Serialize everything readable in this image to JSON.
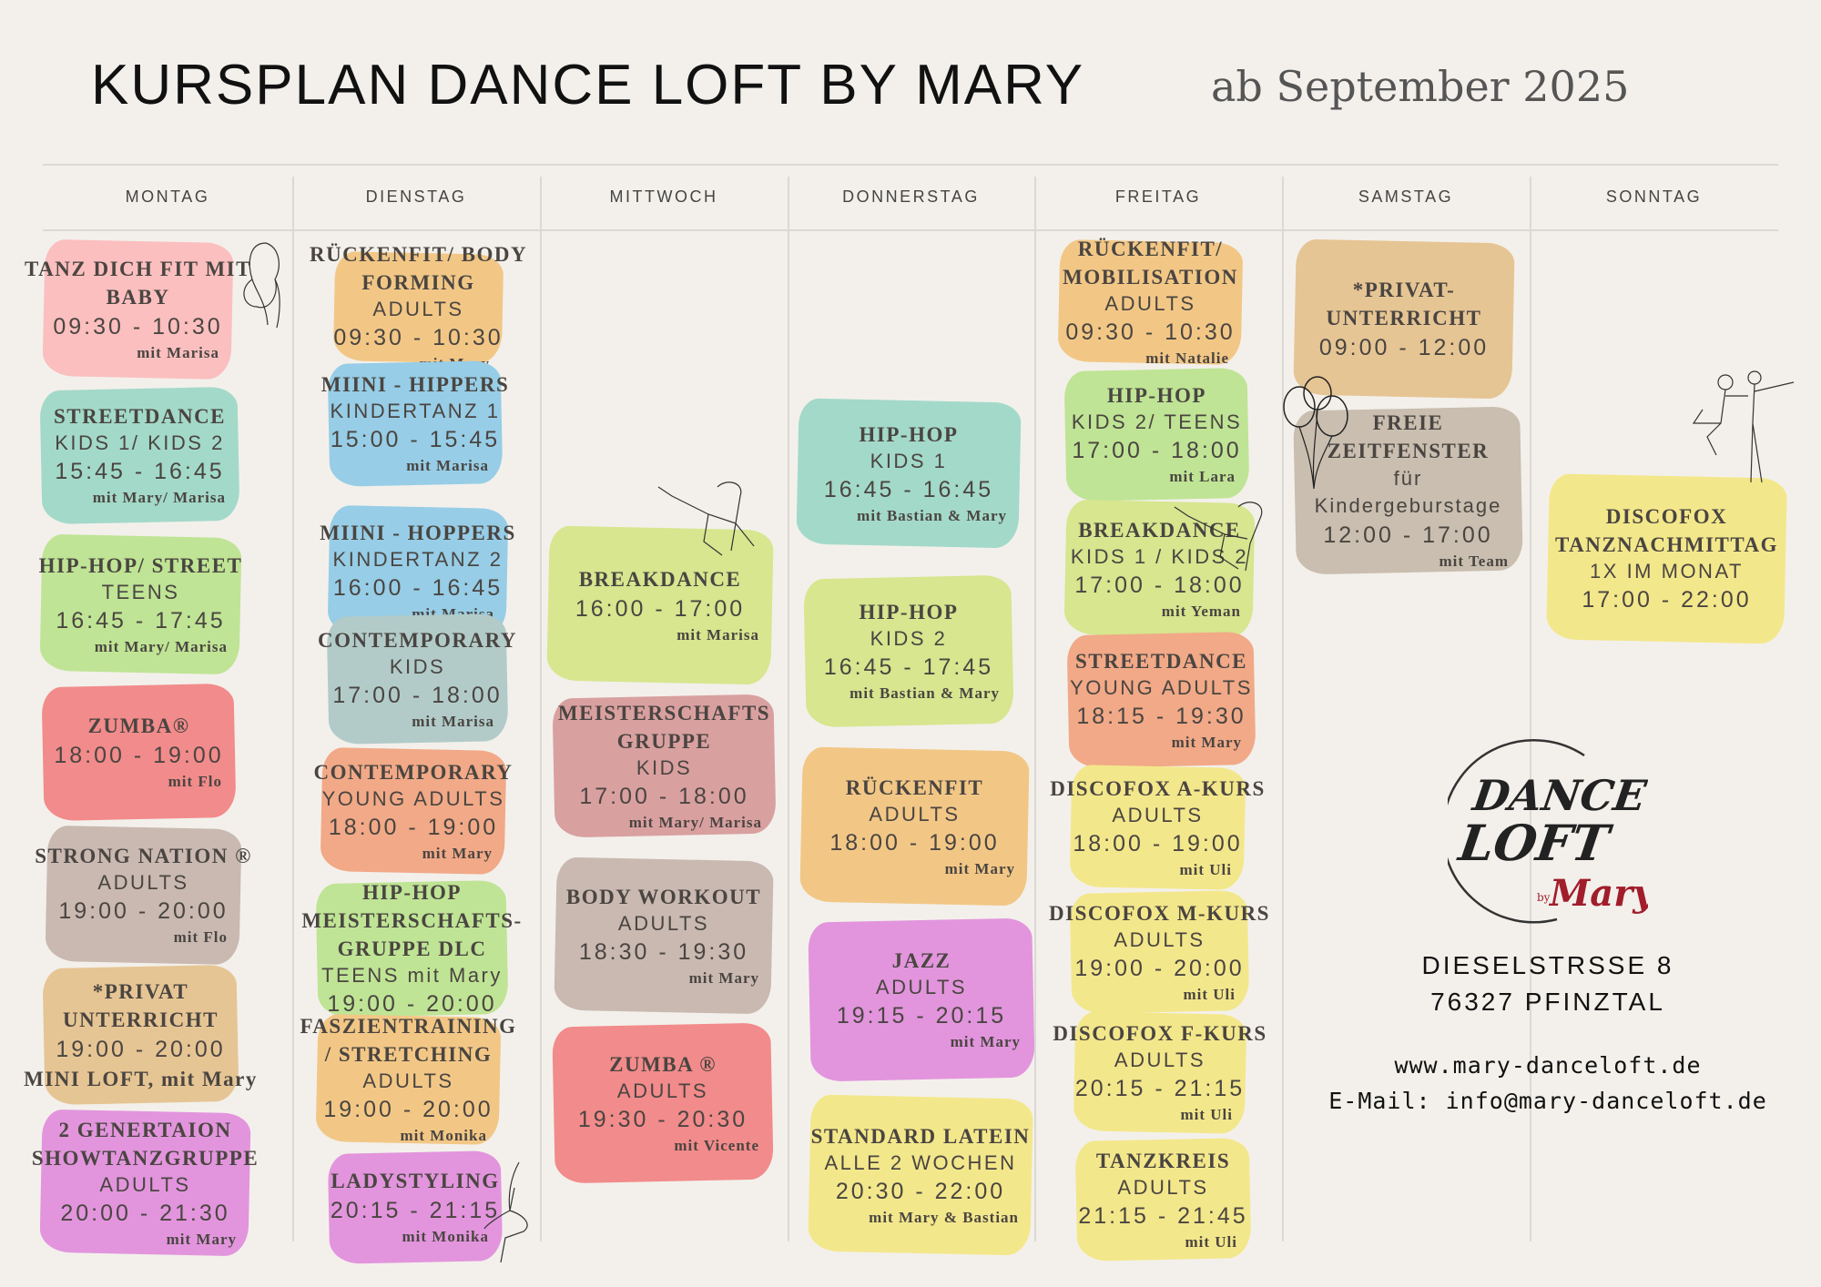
{
  "header": {
    "title": "KURSPLAN DANCE LOFT BY MARY",
    "subtitle": "ab September 2025"
  },
  "colors": {
    "pink": "#fbbfbf",
    "teal": "#a3d9c9",
    "green": "#bfe495",
    "red": "#f28b8b",
    "taupe": "#c9b9b1",
    "sand": "#e6c594",
    "violet": "#e295dd",
    "orange": "#f2c786",
    "blue": "#97cde6",
    "slate": "#b2cbc9",
    "salmon": "#f1a987",
    "lime": "#d7e68f",
    "rose": "#d9a0a0",
    "yellow": "#f3e78b",
    "grey": "#c9beaf"
  },
  "days": [
    {
      "label": "MONTAG",
      "classes": [
        {
          "color": "#fbbfbf",
          "lines": [
            [
              "title",
              "TANZ DICH FIT MIT"
            ],
            [
              "title",
              "BABY"
            ],
            [
              "time",
              "09:30 - 10:30"
            ],
            [
              "teacher",
              "mit Marisa"
            ]
          ]
        },
        {
          "color": "#a3d9c9",
          "lines": [
            [
              "title",
              "STREETDANCE"
            ],
            [
              "level",
              "KIDS 1/ KIDS 2"
            ],
            [
              "time",
              "15:45 - 16:45"
            ],
            [
              "teacher",
              "mit Mary/ Marisa"
            ]
          ]
        },
        {
          "color": "#bfe495",
          "lines": [
            [
              "title",
              "HIP-HOP/ STREET"
            ],
            [
              "level",
              "TEENS"
            ],
            [
              "time",
              "16:45 - 17:45"
            ],
            [
              "teacher",
              "mit Mary/ Marisa"
            ]
          ]
        },
        {
          "color": "#f28b8b",
          "lines": [
            [
              "title",
              "ZUMBA®"
            ],
            [
              "time",
              "18:00 - 19:00"
            ],
            [
              "teacher",
              "mit Flo"
            ]
          ]
        },
        {
          "color": "#c9b9b1",
          "lines": [
            [
              "title",
              "STRONG NATION ®"
            ],
            [
              "level",
              "ADULTS"
            ],
            [
              "time",
              "19:00 - 20:00"
            ],
            [
              "teacher",
              "mit Flo"
            ]
          ]
        },
        {
          "color": "#e6c594",
          "lines": [
            [
              "title",
              "*PRIVAT"
            ],
            [
              "title",
              "UNTERRICHT"
            ],
            [
              "time",
              "19:00 - 20:00"
            ],
            [
              "title",
              "MINI LOFT, mit Mary"
            ]
          ]
        },
        {
          "color": "#e295dd",
          "lines": [
            [
              "title",
              "2 GENERTAION"
            ],
            [
              "title",
              "SHOWTANZGRUPPE"
            ],
            [
              "level",
              "ADULTS"
            ],
            [
              "time",
              "20:00 - 21:30"
            ],
            [
              "teacher",
              "mit Mary"
            ]
          ]
        }
      ]
    },
    {
      "label": "DIENSTAG",
      "classes": [
        {
          "color": "#f2c786",
          "lines": [
            [
              "title",
              "RÜCKENFIT/ BODY"
            ],
            [
              "title",
              "FORMING"
            ],
            [
              "level",
              "ADULTS"
            ],
            [
              "time",
              "09:30 - 10:30"
            ],
            [
              "teacher",
              "mit Mary"
            ]
          ]
        },
        {
          "color": "#97cde6",
          "lines": [
            [
              "title",
              "MIINI - HIPPERS"
            ],
            [
              "level",
              "KINDERTANZ 1"
            ],
            [
              "time",
              "15:00 - 15:45"
            ],
            [
              "teacher",
              "mit Marisa"
            ]
          ]
        },
        {
          "color": "#97cde6",
          "lines": [
            [
              "title",
              "MIINI - HOPPERS"
            ],
            [
              "level",
              "KINDERTANZ 2"
            ],
            [
              "time",
              "16:00 - 16:45"
            ],
            [
              "teacher",
              "mit Marisa"
            ]
          ]
        },
        {
          "color": "#b2cbc9",
          "lines": [
            [
              "title",
              "CONTEMPORARY"
            ],
            [
              "level",
              "KIDS"
            ],
            [
              "time",
              "17:00 - 18:00"
            ],
            [
              "teacher",
              "mit Marisa"
            ]
          ]
        },
        {
          "color": "#f1a987",
          "lines": [
            [
              "title",
              "CONTEMPORARY"
            ],
            [
              "level",
              "YOUNG ADULTS"
            ],
            [
              "time",
              "18:00 - 19:00"
            ],
            [
              "teacher",
              "mit Mary"
            ]
          ]
        },
        {
          "color": "#bfe495",
          "lines": [
            [
              "title",
              "HIP-HOP"
            ],
            [
              "title",
              "MEISTERSCHAFTS-"
            ],
            [
              "title",
              "GRUPPE DLC"
            ],
            [
              "level",
              "TEENS   mit Mary"
            ],
            [
              "time",
              "19:00 - 20:00"
            ]
          ]
        },
        {
          "color": "#f2c786",
          "lines": [
            [
              "title",
              "FASZIENTRAINING"
            ],
            [
              "title",
              "/ STRETCHING"
            ],
            [
              "level",
              "ADULTS"
            ],
            [
              "time",
              "19:00 - 20:00"
            ],
            [
              "teacher",
              "mit Monika"
            ]
          ]
        },
        {
          "color": "#e295dd",
          "lines": [
            [
              "title",
              "LADYSTYLING"
            ],
            [
              "time",
              "20:15 - 21:15"
            ],
            [
              "teacher",
              "mit Monika"
            ]
          ]
        }
      ]
    },
    {
      "label": "MITTWOCH",
      "classes": [
        {
          "color": "#d7e68f",
          "lines": [
            [
              "title",
              "BREAKDANCE"
            ],
            [
              "time",
              "16:00 - 17:00"
            ],
            [
              "teacher",
              "mit Marisa"
            ]
          ]
        },
        {
          "color": "#d9a0a0",
          "lines": [
            [
              "title",
              "MEISTERSCHAFTS"
            ],
            [
              "title",
              "GRUPPE"
            ],
            [
              "level",
              "KIDS"
            ],
            [
              "time",
              "17:00 - 18:00"
            ],
            [
              "teacher",
              "mit Mary/ Marisa"
            ]
          ]
        },
        {
          "color": "#c9b9b1",
          "lines": [
            [
              "title",
              "BODY WORKOUT"
            ],
            [
              "level",
              "ADULTS"
            ],
            [
              "time",
              "18:30 - 19:30"
            ],
            [
              "teacher",
              "mit Mary"
            ]
          ]
        },
        {
          "color": "#f28b8b",
          "lines": [
            [
              "title",
              "ZUMBA ®"
            ],
            [
              "level",
              "ADULTS"
            ],
            [
              "time",
              "19:30 - 20:30"
            ],
            [
              "teacher",
              "mit Vicente"
            ]
          ]
        }
      ]
    },
    {
      "label": "DONNERSTAG",
      "classes": [
        {
          "color": "#a3d9c9",
          "lines": [
            [
              "title",
              "HIP-HOP"
            ],
            [
              "level",
              "KIDS 1"
            ],
            [
              "time",
              "16:45 - 16:45"
            ],
            [
              "teacher",
              "mit Bastian & Mary"
            ]
          ]
        },
        {
          "color": "#d7e68f",
          "lines": [
            [
              "title",
              "HIP-HOP"
            ],
            [
              "level",
              "KIDS 2"
            ],
            [
              "time",
              "16:45 - 17:45"
            ],
            [
              "teacher",
              "mit Bastian & Mary"
            ]
          ]
        },
        {
          "color": "#f2c786",
          "lines": [
            [
              "title",
              "RÜCKENFIT"
            ],
            [
              "level",
              "ADULTS"
            ],
            [
              "time",
              "18:00 - 19:00"
            ],
            [
              "teacher",
              "mit Mary"
            ]
          ]
        },
        {
          "color": "#e295dd",
          "lines": [
            [
              "title",
              "JAZZ"
            ],
            [
              "level",
              "ADULTS"
            ],
            [
              "time",
              "19:15 - 20:15"
            ],
            [
              "teacher",
              "mit Mary"
            ]
          ]
        },
        {
          "color": "#f3e78b",
          "lines": [
            [
              "title",
              "STANDARD LATEIN"
            ],
            [
              "level",
              "ALLE 2 WOCHEN"
            ],
            [
              "time",
              "20:30 - 22:00"
            ],
            [
              "teacher",
              "mit Mary & Bastian"
            ]
          ]
        }
      ]
    },
    {
      "label": "FREITAG",
      "classes": [
        {
          "color": "#f2c786",
          "lines": [
            [
              "title",
              "RÜCKENFIT/"
            ],
            [
              "title",
              "MOBILISATION"
            ],
            [
              "level",
              "ADULTS"
            ],
            [
              "time",
              "09:30 - 10:30"
            ],
            [
              "teacher",
              "mit Natalie"
            ]
          ]
        },
        {
          "color": "#bfe495",
          "lines": [
            [
              "title",
              "HIP-HOP"
            ],
            [
              "level",
              "KIDS 2/ TEENS"
            ],
            [
              "time",
              "17:00 - 18:00"
            ],
            [
              "teacher",
              "mit Lara"
            ]
          ]
        },
        {
          "color": "#d7e68f",
          "lines": [
            [
              "title",
              "BREAKDANCE"
            ],
            [
              "level",
              "KIDS 1 / KIDS 2"
            ],
            [
              "time",
              "17:00 - 18:00"
            ],
            [
              "teacher",
              "mit Yeman"
            ]
          ]
        },
        {
          "color": "#f1a987",
          "lines": [
            [
              "title",
              "STREETDANCE"
            ],
            [
              "level",
              "YOUNG ADULTS"
            ],
            [
              "time",
              "18:15 - 19:30"
            ],
            [
              "teacher",
              "mit Mary"
            ]
          ]
        },
        {
          "color": "#f3e78b",
          "lines": [
            [
              "title",
              "DISCOFOX A-KURS"
            ],
            [
              "level",
              "ADULTS"
            ],
            [
              "time",
              "18:00 - 19:00"
            ],
            [
              "teacher",
              "mit Uli"
            ]
          ]
        },
        {
          "color": "#f3e78b",
          "lines": [
            [
              "title",
              "DISCOFOX M-KURS"
            ],
            [
              "level",
              "ADULTS"
            ],
            [
              "time",
              "19:00 - 20:00"
            ],
            [
              "teacher",
              "mit Uli"
            ]
          ]
        },
        {
          "color": "#f3e78b",
          "lines": [
            [
              "title",
              "DISCOFOX F-KURS"
            ],
            [
              "level",
              "ADULTS"
            ],
            [
              "time",
              "20:15 - 21:15"
            ],
            [
              "teacher",
              "mit Uli"
            ]
          ]
        },
        {
          "color": "#f3e78b",
          "lines": [
            [
              "title",
              "TANZKREIS"
            ],
            [
              "level",
              "ADULTS"
            ],
            [
              "time",
              "21:15 - 21:45"
            ],
            [
              "teacher",
              "mit Uli"
            ]
          ]
        }
      ]
    },
    {
      "label": "SAMSTAG",
      "classes": [
        {
          "color": "#e6c594",
          "lines": [
            [
              "title",
              "*PRIVAT-"
            ],
            [
              "title",
              "UNTERRICHT"
            ],
            [
              "time",
              "09:00 - 12:00"
            ]
          ]
        },
        {
          "color": "#c9beaf",
          "lines": [
            [
              "title",
              "FREIE"
            ],
            [
              "title",
              "ZEITFENSTER"
            ],
            [
              "plain",
              "für"
            ],
            [
              "plain",
              "Kindergeburstage"
            ],
            [
              "time",
              "12:00 - 17:00"
            ],
            [
              "teacher",
              "mit Team"
            ]
          ]
        }
      ]
    },
    {
      "label": "SONNTAG",
      "classes": [
        {
          "color": "#f3e78b",
          "lines": [
            [
              "title",
              "DISCOFOX"
            ],
            [
              "title",
              "TANZNACHMITTAG"
            ],
            [
              "level",
              "1X IM MONAT"
            ],
            [
              "time",
              "17:00 - 22:00"
            ]
          ]
        }
      ]
    }
  ],
  "logo": {
    "line1": "DANCE",
    "line2": "LOFT",
    "line3": "Mary",
    "by": "by"
  },
  "contact": {
    "street": "DIESELSTRSSE 8",
    "city": "76327 PFINZTAL",
    "web": "www.mary-danceloft.de",
    "email": "E-Mail: info@mary-danceloft.de"
  }
}
